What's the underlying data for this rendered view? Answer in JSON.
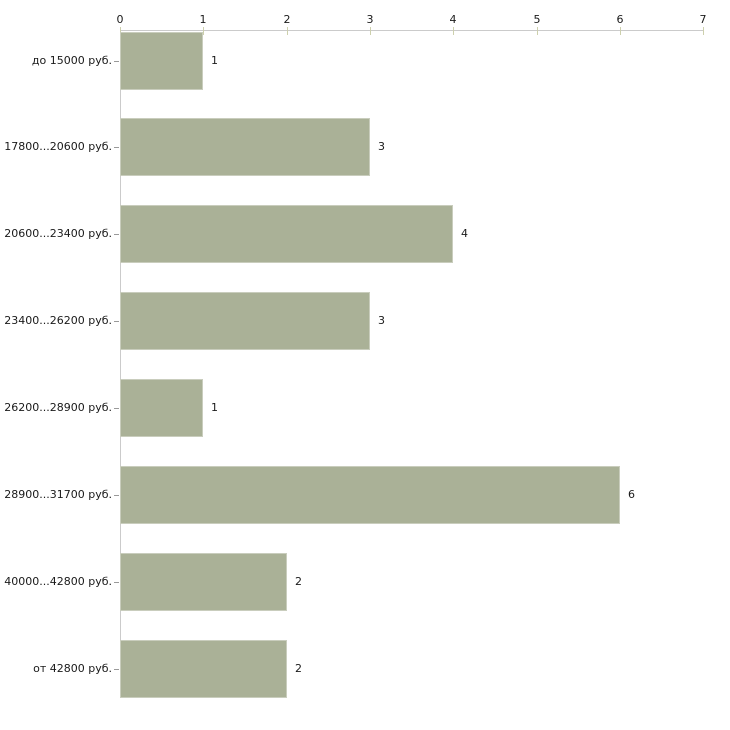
{
  "chart_data": {
    "type": "bar",
    "orientation": "horizontal",
    "title": "",
    "xlabel": "",
    "ylabel": "",
    "categories": [
      "до 15000 руб.",
      "17800...20600 руб.",
      "20600...23400 руб.",
      "23400...26200 руб.",
      "26200...28900 руб.",
      "28900...31700 руб.",
      "40000...42800 руб.",
      "от 42800 руб."
    ],
    "values": [
      1,
      3,
      4,
      3,
      1,
      6,
      2,
      2
    ],
    "value_labels": [
      "1",
      "3",
      "4",
      "3",
      "1",
      "6",
      "2",
      "2"
    ],
    "x_ticks": [
      "0",
      "1",
      "2",
      "3",
      "4",
      "5",
      "6",
      "7"
    ],
    "xlim": [
      0,
      7
    ],
    "axis_position": "top",
    "grid": false,
    "legend": null,
    "colors": {
      "background": "#ffffff",
      "bar_fill": "#aab197",
      "bar_border": "#c9cdbd",
      "axis_line": "#cbcbcb",
      "x_tick_mark": "#cdd0ad",
      "y_tick_mark": "#9a9a9a",
      "text": "#1a1a1a"
    }
  }
}
